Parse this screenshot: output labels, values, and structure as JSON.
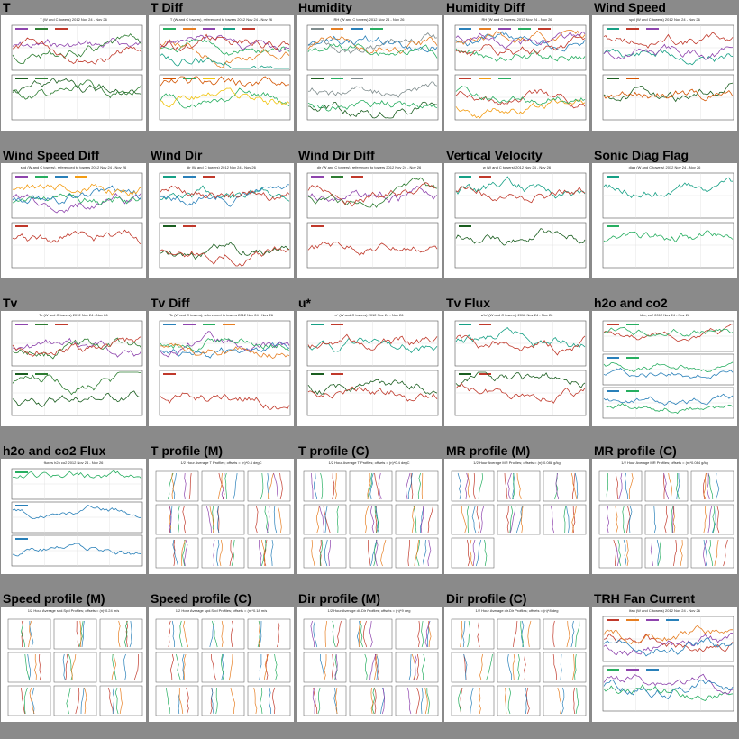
{
  "plots": [
    {
      "title": "T",
      "header": "T (W and C towers) 2012 Nov 24 - Nov 26",
      "kind": "two_panel",
      "top_colors": [
        "#8e44ad",
        "#2e7d32",
        "#c0392b"
      ],
      "bottom_colors": [
        "#1b5e20",
        "#2e7d32"
      ]
    },
    {
      "title": "T Diff",
      "header": "T (W and C towers), referenced to towers 2012 Nov 24 - Nov 26",
      "kind": "two_panel",
      "top_colors": [
        "#27ae60",
        "#e67e22",
        "#8e44ad",
        "#16a085",
        "#c0392b"
      ],
      "bottom_colors": [
        "#d35400",
        "#27ae60",
        "#f1c40f"
      ]
    },
    {
      "title": "Humidity",
      "header": "RH (W and C towers) 2012 Nov 24 - Nov 26",
      "kind": "two_panel",
      "top_colors": [
        "#7f8c8d",
        "#e67e22",
        "#2980b9",
        "#27ae60"
      ],
      "bottom_colors": [
        "#1b5e20",
        "#27ae60",
        "#7f8c8d"
      ]
    },
    {
      "title": "Humidity Diff",
      "header": "RH (W and C towers) 2012 Nov 24 - Nov 26",
      "kind": "two_panel",
      "top_colors": [
        "#2980b9",
        "#e67e22",
        "#8e44ad",
        "#27ae60",
        "#c0392b"
      ],
      "bottom_colors": [
        "#c0392b",
        "#f39c12",
        "#27ae60"
      ]
    },
    {
      "title": "Wind Speed",
      "header": "spd (W and C towers) 2012 Nov 24 - Nov 26",
      "kind": "two_panel",
      "top_colors": [
        "#16a085",
        "#c0392b",
        "#8e44ad"
      ],
      "bottom_colors": [
        "#1b5e20",
        "#d35400"
      ]
    },
    {
      "title": "Wind Speed Diff",
      "header": "spd (W and C towers), referenced to towers 2012 Nov 24 - Nov 26",
      "kind": "two_panel",
      "top_colors": [
        "#8e44ad",
        "#27ae60",
        "#2980b9",
        "#f39c12"
      ],
      "bottom_colors": [
        "#c0392b"
      ]
    },
    {
      "title": "Wind Dir",
      "header": "dir (W and C towers) 2012 Nov 24 - Nov 26",
      "kind": "two_panel",
      "top_colors": [
        "#16a085",
        "#2980b9",
        "#c0392b"
      ],
      "bottom_colors": [
        "#1b5e20",
        "#c0392b"
      ]
    },
    {
      "title": "Wind Dir Diff",
      "header": "dir (W and C towers), referenced to towers 2012 Nov 24 - Nov 26",
      "kind": "two_panel",
      "top_colors": [
        "#8e44ad",
        "#2e7d32",
        "#c0392b"
      ],
      "bottom_colors": [
        "#c0392b"
      ]
    },
    {
      "title": "Vertical Velocity",
      "header": "w (W and C towers) 2012 Nov 24 - Nov 26",
      "kind": "two_panel",
      "top_colors": [
        "#16a085",
        "#c0392b"
      ],
      "bottom_colors": [
        "#1b5e20"
      ]
    },
    {
      "title": "Sonic Diag Flag",
      "header": "diag (W and C towers) 2012 Nov 24 - Nov 26",
      "kind": "two_panel",
      "top_colors": [
        "#16a085"
      ],
      "bottom_colors": [
        "#27ae60"
      ]
    },
    {
      "title": "Tv",
      "header": "Tc (W and C towers) 2012 Nov 24 - Nov 26",
      "kind": "two_panel",
      "top_colors": [
        "#8e44ad",
        "#2e7d32",
        "#c0392b"
      ],
      "bottom_colors": [
        "#1b5e20",
        "#2e7d32"
      ]
    },
    {
      "title": "Tv Diff",
      "header": "Tc (W and C towers), referenced to towers 2012 Nov 24 - Nov 26",
      "kind": "two_panel",
      "top_colors": [
        "#2980b9",
        "#8e44ad",
        "#27ae60",
        "#e67e22"
      ],
      "bottom_colors": [
        "#c0392b"
      ]
    },
    {
      "title": "u*",
      "header": "u* (W and C towers) 2012 Nov 24 - Nov 26",
      "kind": "two_panel",
      "top_colors": [
        "#16a085",
        "#c0392b"
      ],
      "bottom_colors": [
        "#1b5e20",
        "#c0392b"
      ]
    },
    {
      "title": "Tv Flux",
      "header": "w'tc' (W and C towers) 2012 Nov 24 - Nov 26",
      "kind": "two_panel",
      "top_colors": [
        "#16a085",
        "#c0392b"
      ],
      "bottom_colors": [
        "#1b5e20",
        "#c0392b"
      ]
    },
    {
      "title": "h2o and co2",
      "header": "h2o, co2 2012 Nov 24 - Nov 26",
      "kind": "three_panel",
      "top_colors": [
        "#c0392b",
        "#27ae60"
      ],
      "bottom_colors": [
        "#2980b9",
        "#27ae60"
      ]
    },
    {
      "title": "h2o and co2 Flux",
      "header": "fluxes h2o co2 2012 Nov 24 - Nov 26",
      "kind": "three_panel",
      "top_colors": [
        "#27ae60"
      ],
      "bottom_colors": [
        "#2980b9"
      ]
    },
    {
      "title": "T profile (M)",
      "header": "1/2 Hour Average T Profiles; offsets = (n)*0.4 degC",
      "kind": "profile",
      "top_colors": [
        "#c0392b",
        "#2980b9",
        "#27ae60",
        "#e67e22",
        "#8e44ad"
      ],
      "bottom_colors": []
    },
    {
      "title": "T profile (C)",
      "header": "1/2 Hour Average T Profiles; offsets = (n)*0.4 degC",
      "kind": "profile",
      "top_colors": [
        "#c0392b",
        "#2980b9",
        "#27ae60",
        "#e67e22",
        "#8e44ad"
      ],
      "bottom_colors": []
    },
    {
      "title": "MR profile (M)",
      "header": "1/2 Hour Average MR Profiles; offsets = (n)*0.088 g/kg",
      "kind": "profile",
      "top_colors": [
        "#c0392b",
        "#2980b9",
        "#27ae60",
        "#e67e22",
        "#8e44ad"
      ],
      "bottom_colors": []
    },
    {
      "title": "MR profile (C)",
      "header": "1/2 Hour Average MR Profiles; offsets = (n)*0.084 g/kg",
      "kind": "profile",
      "top_colors": [
        "#c0392b",
        "#2980b9",
        "#27ae60",
        "#e67e22",
        "#8e44ad"
      ],
      "bottom_colors": []
    },
    {
      "title": "Speed profile (M)",
      "header": "1/2 Hour Average spd.Spd Profiles; offsets = (n)*0.24 m/s",
      "kind": "profile",
      "top_colors": [
        "#c0392b",
        "#2980b9",
        "#27ae60",
        "#e67e22"
      ],
      "bottom_colors": []
    },
    {
      "title": "Speed profile (C)",
      "header": "1/2 Hour Average spd.Spd Profiles; offsets = (n)*0.18 m/s",
      "kind": "profile",
      "top_colors": [
        "#c0392b",
        "#2980b9",
        "#27ae60",
        "#e67e22"
      ],
      "bottom_colors": []
    },
    {
      "title": "Dir profile (M)",
      "header": "1/2 Hour Average dir.Dir Profiles; offsets = (n)*9 deg",
      "kind": "profile",
      "top_colors": [
        "#c0392b",
        "#2980b9",
        "#27ae60",
        "#e67e22",
        "#8e44ad"
      ],
      "bottom_colors": []
    },
    {
      "title": "Dir profile (C)",
      "header": "1/2 Hour Average dir.Dir Profiles; offsets = (n)*8 deg",
      "kind": "profile",
      "top_colors": [
        "#c0392b",
        "#2980b9",
        "#27ae60",
        "#e67e22"
      ],
      "bottom_colors": []
    },
    {
      "title": "TRH Fan Current",
      "header": "Ifan (W and C towers) 2012 Nov 24 - Nov 26",
      "kind": "two_panel",
      "top_colors": [
        "#c0392b",
        "#e67e22",
        "#8e44ad",
        "#2980b9"
      ],
      "bottom_colors": [
        "#27ae60",
        "#8e44ad",
        "#2980b9"
      ]
    }
  ]
}
